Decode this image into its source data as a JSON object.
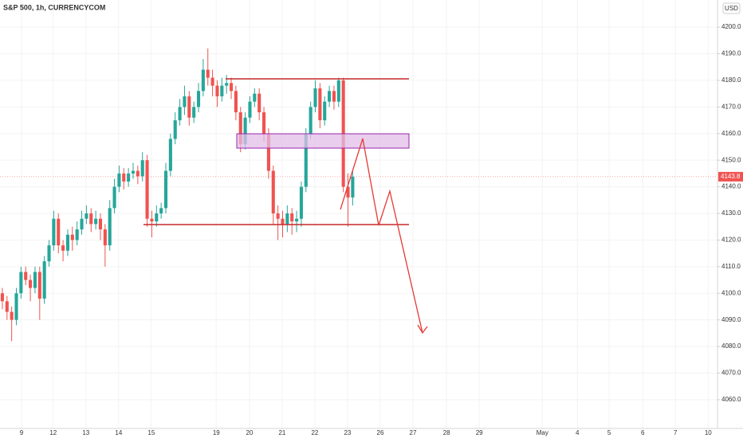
{
  "chart_data": {
    "type": "candlestick",
    "title": "S&P 500, 1h, CURRENCYCOM",
    "currency": "USD",
    "up_color": "#26a69a",
    "down_color": "#ef5350",
    "x": [
      0,
      1,
      2,
      3,
      4,
      5,
      6,
      7,
      8,
      9,
      10,
      11,
      12,
      13,
      14,
      15,
      16,
      17,
      18,
      19,
      20,
      21,
      22,
      23,
      24,
      25,
      26,
      27,
      28,
      29,
      30,
      31,
      32,
      33,
      34,
      35,
      36,
      37,
      38,
      39,
      40,
      41,
      42,
      43,
      44,
      45,
      46,
      47,
      48,
      49,
      50,
      51,
      52,
      53,
      54,
      55,
      56,
      57,
      58,
      59,
      60,
      61,
      62,
      63,
      64,
      65,
      66,
      67,
      68,
      69,
      70,
      71,
      72,
      73,
      74,
      75
    ],
    "open": [
      4100,
      4097,
      4093,
      4090,
      4100,
      4108,
      4105,
      4102,
      4108,
      4098,
      4112,
      4118,
      4128,
      4118,
      4116,
      4122,
      4120,
      4124,
      4128,
      4130,
      4126,
      4128,
      4124,
      4118,
      4132,
      4140,
      4145,
      4142,
      4145,
      4146,
      4144,
      4150,
      4128,
      4127,
      4130,
      4132,
      4146,
      4158,
      4165,
      4170,
      4174,
      4166,
      4170,
      4176,
      4184,
      4181,
      4178,
      4174,
      4178,
      4179,
      4176,
      4168,
      4156,
      4166,
      4172,
      4175,
      4168,
      4160,
      4146,
      4130,
      4128,
      4126,
      4130,
      4127,
      4128,
      4140,
      4160,
      4170,
      4177,
      4165,
      4172,
      4176,
      4172,
      4180,
      4140,
      4136
    ],
    "high": [
      4102,
      4099,
      4095,
      4102,
      4110,
      4110,
      4107,
      4110,
      4110,
      4114,
      4120,
      4131,
      4130,
      4120,
      4124,
      4125,
      4127,
      4131,
      4133,
      4132,
      4131,
      4130,
      4126,
      4135,
      4143,
      4148,
      4147,
      4147,
      4149,
      4148,
      4153,
      4152,
      4131,
      4133,
      4134,
      4149,
      4160,
      4168,
      4173,
      4178,
      4176,
      4172,
      4179,
      4188,
      4192,
      4184,
      4180,
      4181,
      4182,
      4181,
      4178,
      4170,
      4168,
      4174,
      4177,
      4177,
      4170,
      4162,
      4148,
      4133,
      4131,
      4133,
      4132,
      4131,
      4142,
      4162,
      4172,
      4180,
      4179,
      4174,
      4178,
      4178,
      4181,
      4181,
      4145,
      4146
    ],
    "low": [
      4094,
      4090,
      4082,
      4088,
      4098,
      4103,
      4097,
      4100,
      4090,
      4096,
      4110,
      4116,
      4115,
      4112,
      4114,
      4116,
      4118,
      4122,
      4126,
      4123,
      4124,
      4120,
      4110,
      4116,
      4130,
      4138,
      4139,
      4140,
      4143,
      4141,
      4142,
      4125,
      4121,
      4125,
      4128,
      4130,
      4144,
      4156,
      4163,
      4167,
      4163,
      4164,
      4168,
      4174,
      4178,
      4174,
      4170,
      4172,
      4175,
      4173,
      4165,
      4153,
      4154,
      4164,
      4170,
      4165,
      4157,
      4143,
      4126,
      4120,
      4121,
      4123,
      4122,
      4123,
      4125,
      4138,
      4158,
      4168,
      4162,
      4163,
      4170,
      4169,
      4170,
      4138,
      4125,
      4133
    ],
    "close": [
      4097,
      4093,
      4090,
      4100,
      4108,
      4105,
      4102,
      4108,
      4098,
      4112,
      4118,
      4128,
      4118,
      4116,
      4122,
      4120,
      4124,
      4128,
      4130,
      4126,
      4128,
      4124,
      4118,
      4132,
      4140,
      4145,
      4142,
      4145,
      4146,
      4144,
      4150,
      4128,
      4127,
      4130,
      4132,
      4146,
      4158,
      4165,
      4170,
      4174,
      4166,
      4170,
      4176,
      4184,
      4181,
      4178,
      4174,
      4178,
      4179,
      4176,
      4168,
      4156,
      4166,
      4172,
      4175,
      4168,
      4160,
      4146,
      4130,
      4128,
      4126,
      4130,
      4127,
      4128,
      4140,
      4160,
      4170,
      4177,
      4165,
      4172,
      4176,
      4172,
      4180,
      4140,
      4136,
      4143.8
    ],
    "last_price": {
      "value": 4143.8,
      "label": "4143.8"
    },
    "xlim": [
      -0.5,
      153.1
    ],
    "xticks": [
      {
        "value": 4.1,
        "label": "9"
      },
      {
        "value": 10.9,
        "label": "12"
      },
      {
        "value": 17.9,
        "label": "13"
      },
      {
        "value": 24.9,
        "label": "14"
      },
      {
        "value": 31.9,
        "label": "15"
      },
      {
        "value": 45.8,
        "label": "19"
      },
      {
        "value": 52.9,
        "label": "20"
      },
      {
        "value": 59.9,
        "label": "21"
      },
      {
        "value": 66.9,
        "label": "22"
      },
      {
        "value": 73.9,
        "label": "23"
      },
      {
        "value": 80.9,
        "label": "26"
      },
      {
        "value": 87.9,
        "label": "27"
      },
      {
        "value": 95.1,
        "label": "28"
      },
      {
        "value": 102.1,
        "label": "29"
      },
      {
        "value": 115.6,
        "label": "May"
      },
      {
        "value": 123.1,
        "label": "4"
      },
      {
        "value": 129.9,
        "label": "5"
      },
      {
        "value": 137.1,
        "label": "6"
      },
      {
        "value": 144.1,
        "label": "7"
      },
      {
        "value": 151.1,
        "label": "10"
      }
    ],
    "ylim": [
      4049.2,
      4210.2
    ],
    "yticks": [
      {
        "value": 4060,
        "label": "4060.0"
      },
      {
        "value": 4070,
        "label": "4070.0"
      },
      {
        "value": 4080,
        "label": "4080.0"
      },
      {
        "value": 4090,
        "label": "4090.0"
      },
      {
        "value": 4100,
        "label": "4100.0"
      },
      {
        "value": 4110,
        "label": "4110.0"
      },
      {
        "value": 4120,
        "label": "4120.0"
      },
      {
        "value": 4130,
        "label": "4130.0"
      },
      {
        "value": 4140,
        "label": "4140.0"
      },
      {
        "value": 4150,
        "label": "4150.0"
      },
      {
        "value": 4160,
        "label": "4160.0"
      },
      {
        "value": 4170,
        "label": "4170.0"
      },
      {
        "value": 4180,
        "label": "4180.0"
      },
      {
        "value": 4190,
        "label": "4190.0"
      },
      {
        "value": 4200,
        "label": "4200.0"
      }
    ]
  }
}
